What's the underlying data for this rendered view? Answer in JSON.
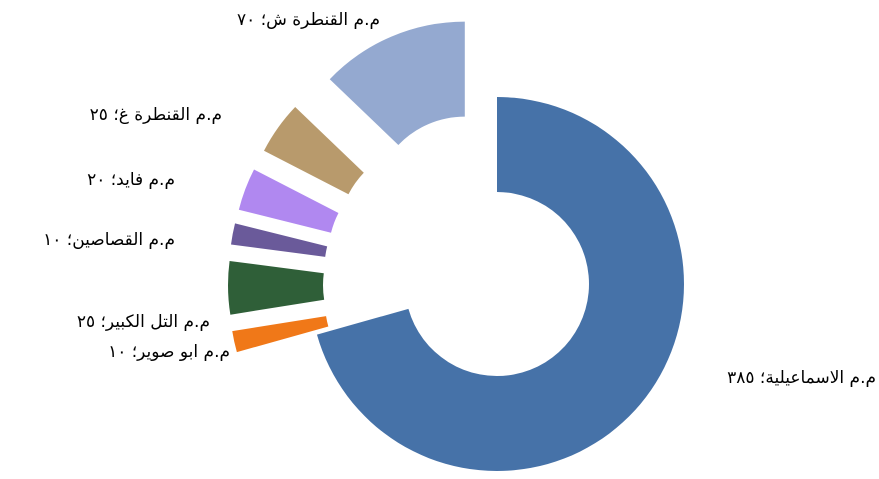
{
  "chart_data": {
    "type": "donut",
    "values": [
      385,
      10,
      25,
      10,
      20,
      25,
      70
    ],
    "value_labels": [
      "م.م الاسماعيلية؛ ٣٨٥",
      "م.م ابو صوير؛ ١٠",
      "م.م التل الكبير؛ ٢٥",
      "م.م القصاصين؛ ١٠",
      "م.م فايد؛ ٢٠",
      "م.م القنطرة غ؛ ٢٥",
      "م.م القنطرة ش؛ ٧٠"
    ],
    "colors": [
      "#4672a8",
      "#f07818",
      "#2f5f38",
      "#6a5a9a",
      "#b088f0",
      "#b89a6c",
      "#94a9d0"
    ]
  }
}
